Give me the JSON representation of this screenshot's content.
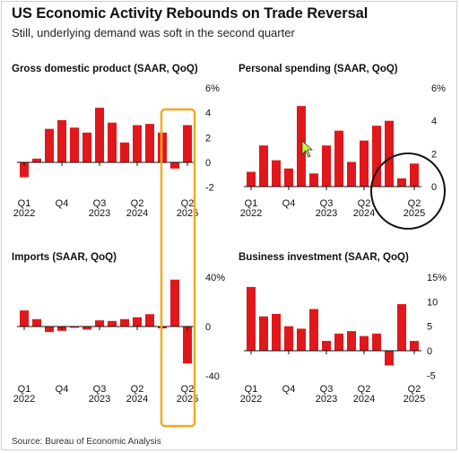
{
  "header": {
    "title": "US Economic Activity Rebounds on Trade Reversal",
    "subtitle": "Still, underlying demand was soft in the second quarter"
  },
  "footer": {
    "source": "Source: Bureau of Economic Analysis"
  },
  "colors": {
    "bar": "#e0181b",
    "zero_line": "#111111",
    "highlight_box": "#f2a91d",
    "circle": "#111111"
  },
  "annotations": {
    "highlight_box": "Q2 2025 highlight box spanning GDP and Imports panels",
    "circle": "circle around final quarters of Personal spending",
    "cursor": "mouse-pointer-icon"
  },
  "chart_data": [
    {
      "type": "bar",
      "title": "Gross domestic product (SAAR, QoQ)",
      "categories": [
        "Q1 2022",
        "Q2 2022",
        "Q3 2022",
        "Q4 2022",
        "Q1 2023",
        "Q2 2023",
        "Q3 2023",
        "Q4 2023",
        "Q1 2024",
        "Q2 2024",
        "Q3 2024",
        "Q4 2024",
        "Q1 2025",
        "Q2 2025"
      ],
      "values": [
        -1.2,
        0.3,
        2.7,
        3.4,
        2.8,
        2.4,
        4.4,
        3.2,
        1.6,
        3.0,
        3.1,
        2.4,
        -0.5,
        3.0
      ],
      "ylim": [
        -3,
        6
      ],
      "y_ticks": [
        -2,
        0,
        2,
        4,
        6
      ],
      "y_tick_labels": [
        "-2",
        "0",
        "2",
        "4",
        "6%"
      ],
      "x_tick_labels": [
        {
          "index": 0,
          "line1": "Q1",
          "line2": "2022"
        },
        {
          "index": 3,
          "line1": "Q4",
          "line2": ""
        },
        {
          "index": 6,
          "line1": "Q3",
          "line2": "2023"
        },
        {
          "index": 9,
          "line1": "Q2",
          "line2": "2024"
        },
        {
          "index": 13,
          "line1": "Q2",
          "line2": "2025"
        }
      ]
    },
    {
      "type": "bar",
      "title": "Personal spending (SAAR, QoQ)",
      "categories": [
        "Q1 2022",
        "Q2 2022",
        "Q3 2022",
        "Q4 2022",
        "Q1 2023",
        "Q2 2023",
        "Q3 2023",
        "Q4 2023",
        "Q1 2024",
        "Q2 2024",
        "Q3 2024",
        "Q4 2024",
        "Q1 2025",
        "Q2 2025"
      ],
      "values": [
        0.9,
        2.5,
        1.6,
        1.1,
        4.9,
        0.8,
        2.5,
        3.4,
        1.5,
        2.8,
        3.7,
        4.0,
        0.5,
        1.4
      ],
      "ylim": [
        -1.5,
        6
      ],
      "y_ticks": [
        0,
        2,
        4,
        6
      ],
      "y_tick_labels": [
        "0",
        "2",
        "4",
        "6%"
      ],
      "x_tick_labels": [
        {
          "index": 0,
          "line1": "Q1",
          "line2": "2022"
        },
        {
          "index": 3,
          "line1": "Q4",
          "line2": ""
        },
        {
          "index": 6,
          "line1": "Q3",
          "line2": "2023"
        },
        {
          "index": 9,
          "line1": "Q2",
          "line2": "2024"
        },
        {
          "index": 13,
          "line1": "Q2",
          "line2": "2025"
        }
      ]
    },
    {
      "type": "bar",
      "title": "Imports (SAAR, QoQ)",
      "categories": [
        "Q1 2022",
        "Q2 2022",
        "Q3 2022",
        "Q4 2022",
        "Q1 2023",
        "Q2 2023",
        "Q3 2023",
        "Q4 2023",
        "Q1 2024",
        "Q2 2024",
        "Q3 2024",
        "Q4 2024",
        "Q1 2025",
        "Q2 2025"
      ],
      "values": [
        13.0,
        6.0,
        -4.5,
        -3.5,
        -1.0,
        -2.5,
        5.0,
        4.5,
        6.0,
        7.5,
        10.0,
        -1.5,
        38.0,
        -30.0
      ],
      "ylim": [
        -50,
        45
      ],
      "y_ticks": [
        -40,
        0,
        40
      ],
      "y_tick_labels": [
        "-40",
        "0",
        "40%"
      ],
      "x_tick_labels": [
        {
          "index": 0,
          "line1": "Q1",
          "line2": "2022"
        },
        {
          "index": 3,
          "line1": "Q4",
          "line2": ""
        },
        {
          "index": 6,
          "line1": "Q3",
          "line2": "2023"
        },
        {
          "index": 9,
          "line1": "Q2",
          "line2": "2024"
        },
        {
          "index": 13,
          "line1": "Q2",
          "line2": "2025"
        }
      ]
    },
    {
      "type": "bar",
      "title": "Business investment (SAAR, QoQ)",
      "categories": [
        "Q1 2022",
        "Q2 2022",
        "Q3 2022",
        "Q4 2022",
        "Q1 2023",
        "Q2 2023",
        "Q3 2023",
        "Q4 2023",
        "Q1 2024",
        "Q2 2024",
        "Q3 2024",
        "Q4 2024",
        "Q1 2025",
        "Q2 2025"
      ],
      "values": [
        13.0,
        7.0,
        7.5,
        5.0,
        4.5,
        8.5,
        2.0,
        3.5,
        4.0,
        3.0,
        3.5,
        -3.0,
        9.5,
        2.0
      ],
      "ylim": [
        -6.5,
        15
      ],
      "y_ticks": [
        -5,
        0,
        5,
        10,
        15
      ],
      "y_tick_labels": [
        "-5",
        "0",
        "5",
        "10",
        "15%"
      ],
      "x_tick_labels": [
        {
          "index": 0,
          "line1": "Q1",
          "line2": "2022"
        },
        {
          "index": 3,
          "line1": "Q4",
          "line2": ""
        },
        {
          "index": 6,
          "line1": "Q3",
          "line2": "2023"
        },
        {
          "index": 9,
          "line1": "Q2",
          "line2": "2024"
        },
        {
          "index": 13,
          "line1": "Q2",
          "line2": "2025"
        }
      ]
    }
  ]
}
